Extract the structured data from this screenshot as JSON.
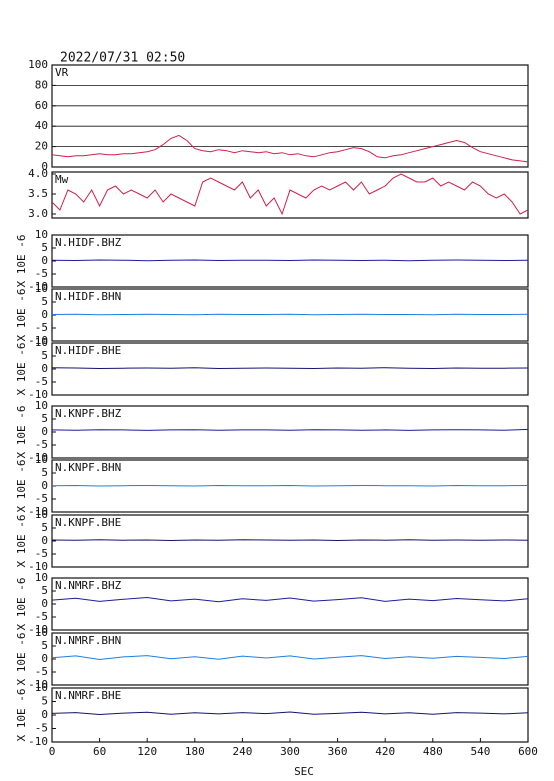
{
  "chart_data": [
    {
      "type": "line",
      "title": "2022/07/31 02:50",
      "label": "VR",
      "color": "#d0204a",
      "grid": true,
      "xlim": [
        0,
        600
      ],
      "ylim": [
        0,
        100
      ],
      "yticks": [
        0,
        20,
        40,
        60,
        80,
        100
      ],
      "x": [
        0,
        10,
        20,
        30,
        40,
        50,
        60,
        70,
        80,
        90,
        100,
        110,
        120,
        130,
        140,
        150,
        160,
        170,
        180,
        190,
        200,
        210,
        220,
        230,
        240,
        250,
        260,
        270,
        280,
        290,
        300,
        310,
        320,
        330,
        340,
        350,
        360,
        370,
        380,
        390,
        400,
        410,
        420,
        430,
        440,
        450,
        460,
        470,
        480,
        490,
        500,
        510,
        520,
        530,
        540,
        550,
        560,
        570,
        580,
        590,
        600
      ],
      "values": [
        12,
        11,
        10,
        11,
        11,
        12,
        13,
        12,
        12,
        13,
        13,
        14,
        15,
        17,
        22,
        28,
        31,
        26,
        18,
        16,
        15,
        17,
        16,
        14,
        16,
        15,
        14,
        15,
        13,
        14,
        12,
        13,
        11,
        10,
        12,
        14,
        15,
        17,
        19,
        18,
        15,
        10,
        9,
        11,
        12,
        14,
        16,
        18,
        20,
        22,
        24,
        26,
        24,
        19,
        15,
        13,
        11,
        9,
        7,
        6,
        5
      ]
    },
    {
      "type": "line",
      "label": "Mw",
      "color": "#d0204a",
      "xlim": [
        0,
        600
      ],
      "ylim": [
        2.9,
        4.05
      ],
      "yticks": [
        {
          "value": 3,
          "label": "3.0"
        },
        3.5,
        {
          "value": 4,
          "label": "4.0"
        }
      ],
      "x": [
        0,
        10,
        20,
        30,
        40,
        50,
        60,
        70,
        80,
        90,
        100,
        110,
        120,
        130,
        140,
        150,
        160,
        170,
        180,
        190,
        200,
        210,
        220,
        230,
        240,
        250,
        260,
        270,
        280,
        290,
        300,
        310,
        320,
        330,
        340,
        350,
        360,
        370,
        380,
        390,
        400,
        410,
        420,
        430,
        440,
        450,
        460,
        470,
        480,
        490,
        500,
        510,
        520,
        530,
        540,
        550,
        560,
        570,
        580,
        590,
        600
      ],
      "values": [
        3.3,
        3.1,
        3.6,
        3.5,
        3.3,
        3.6,
        3.2,
        3.6,
        3.7,
        3.5,
        3.6,
        3.5,
        3.4,
        3.6,
        3.3,
        3.5,
        3.4,
        3.3,
        3.2,
        3.8,
        3.9,
        3.8,
        3.7,
        3.6,
        3.8,
        3.4,
        3.6,
        3.2,
        3.4,
        3.0,
        3.6,
        3.5,
        3.4,
        3.6,
        3.7,
        3.6,
        3.7,
        3.8,
        3.6,
        3.8,
        3.5,
        3.6,
        3.7,
        3.9,
        4.0,
        3.9,
        3.8,
        3.8,
        3.9,
        3.7,
        3.8,
        3.7,
        3.6,
        3.8,
        3.7,
        3.5,
        3.4,
        3.5,
        3.3,
        3.0,
        3.1
      ]
    },
    {
      "type": "line",
      "label": "N.HIDF.BHZ",
      "ylabel": "X 10E -6",
      "color": "#1c1c9c",
      "xlim": [
        0,
        600
      ],
      "ylim": [
        -10,
        10
      ],
      "yticks": [
        -10,
        -5,
        0,
        5,
        10
      ],
      "x": [
        0,
        30,
        60,
        90,
        120,
        150,
        180,
        210,
        240,
        270,
        300,
        330,
        360,
        390,
        420,
        450,
        480,
        510,
        540,
        570,
        600
      ],
      "values": [
        0.3,
        0.2,
        0.4,
        0.3,
        0.1,
        0.3,
        0.4,
        0.2,
        0.3,
        0.3,
        0.2,
        0.4,
        0.3,
        0.2,
        0.3,
        0.1,
        0.3,
        0.4,
        0.3,
        0.2,
        0.3
      ]
    },
    {
      "type": "line",
      "label": "N.HIDF.BHN",
      "ylabel": "X 10E -6",
      "color": "#1e7fe0",
      "xlim": [
        0,
        600
      ],
      "ylim": [
        -10,
        10
      ],
      "yticks": [
        -10,
        -5,
        0,
        5,
        10
      ],
      "x": [
        0,
        30,
        60,
        90,
        120,
        150,
        180,
        210,
        240,
        270,
        300,
        330,
        360,
        390,
        420,
        450,
        480,
        510,
        540,
        570,
        600
      ],
      "values": [
        0.2,
        0.3,
        0.1,
        0.2,
        0.3,
        0.2,
        0.1,
        0.3,
        0.2,
        0.2,
        0.3,
        0.1,
        0.2,
        0.3,
        0.2,
        0.2,
        0.1,
        0.3,
        0.2,
        0.2,
        0.3
      ]
    },
    {
      "type": "line",
      "label": "N.HIDF.BHE",
      "ylabel": "X 10E -6",
      "color": "#141470",
      "xlim": [
        0,
        600
      ],
      "ylim": [
        -10,
        10
      ],
      "yticks": [
        -10,
        -5,
        0,
        5,
        10
      ],
      "x": [
        0,
        30,
        60,
        90,
        120,
        150,
        180,
        210,
        240,
        270,
        300,
        330,
        360,
        390,
        420,
        450,
        480,
        510,
        540,
        570,
        600
      ],
      "values": [
        0.5,
        0.4,
        0.2,
        0.3,
        0.4,
        0.3,
        0.5,
        0.2,
        0.3,
        0.4,
        0.3,
        0.2,
        0.4,
        0.3,
        0.5,
        0.3,
        0.2,
        0.4,
        0.3,
        0.3,
        0.4
      ]
    },
    {
      "type": "line",
      "label": "N.KNPF.BHZ",
      "ylabel": "X 10E -6",
      "color": "#1c1c9c",
      "xlim": [
        0,
        600
      ],
      "ylim": [
        -10,
        10
      ],
      "yticks": [
        -10,
        -5,
        0,
        5,
        10
      ],
      "x": [
        0,
        30,
        60,
        90,
        120,
        150,
        180,
        210,
        240,
        270,
        300,
        330,
        360,
        390,
        420,
        450,
        480,
        510,
        540,
        570,
        600
      ],
      "values": [
        0.8,
        0.7,
        0.9,
        0.8,
        0.6,
        0.8,
        0.9,
        0.7,
        0.8,
        0.8,
        0.7,
        0.9,
        0.8,
        0.7,
        0.8,
        0.6,
        0.8,
        0.9,
        0.8,
        0.7,
        1.0
      ]
    },
    {
      "type": "line",
      "label": "N.KNPF.BHN",
      "ylabel": "X 10E -6",
      "color": "#1e7fe0",
      "xlim": [
        0,
        600
      ],
      "ylim": [
        -10,
        10
      ],
      "yticks": [
        -10,
        -5,
        0,
        5,
        10
      ],
      "x": [
        0,
        30,
        60,
        90,
        120,
        150,
        180,
        210,
        240,
        270,
        300,
        330,
        360,
        390,
        420,
        450,
        480,
        510,
        540,
        570,
        600
      ],
      "values": [
        0.1,
        0.2,
        0.0,
        0.1,
        0.2,
        0.1,
        0.0,
        0.2,
        0.1,
        0.1,
        0.2,
        0.0,
        0.1,
        0.2,
        0.1,
        0.1,
        0.0,
        0.2,
        0.1,
        0.1,
        0.2
      ]
    },
    {
      "type": "line",
      "label": "N.KNPF.BHE",
      "ylabel": "X 10E -6",
      "color": "#141470",
      "xlim": [
        0,
        600
      ],
      "ylim": [
        -10,
        10
      ],
      "yticks": [
        -10,
        -5,
        0,
        5,
        10
      ],
      "x": [
        0,
        30,
        60,
        90,
        120,
        150,
        180,
        210,
        240,
        270,
        300,
        330,
        360,
        390,
        420,
        450,
        480,
        510,
        540,
        570,
        600
      ],
      "values": [
        0.4,
        0.3,
        0.5,
        0.3,
        0.4,
        0.2,
        0.4,
        0.3,
        0.5,
        0.4,
        0.3,
        0.4,
        0.2,
        0.4,
        0.3,
        0.5,
        0.3,
        0.4,
        0.3,
        0.4,
        0.3
      ]
    },
    {
      "type": "line",
      "label": "N.NMRF.BHZ",
      "ylabel": "X 10E -6",
      "color": "#1c1c9c",
      "xlim": [
        0,
        600
      ],
      "ylim": [
        -10,
        10
      ],
      "yticks": [
        -10,
        -5,
        0,
        5,
        10
      ],
      "x": [
        0,
        30,
        60,
        90,
        120,
        150,
        180,
        210,
        240,
        270,
        300,
        330,
        360,
        390,
        420,
        450,
        480,
        510,
        540,
        570,
        600
      ],
      "values": [
        1.5,
        2.2,
        1.0,
        1.8,
        2.5,
        1.2,
        1.9,
        0.9,
        2.0,
        1.4,
        2.3,
        1.1,
        1.7,
        2.4,
        1.0,
        1.9,
        1.3,
        2.1,
        1.6,
        1.2,
        2.0
      ]
    },
    {
      "type": "line",
      "label": "N.NMRF.BHN",
      "ylabel": "X 10E -6",
      "color": "#1e7fe0",
      "xlim": [
        0,
        600
      ],
      "ylim": [
        -10,
        10
      ],
      "yticks": [
        -10,
        -5,
        0,
        5,
        10
      ],
      "x": [
        0,
        30,
        60,
        90,
        120,
        150,
        180,
        210,
        240,
        270,
        300,
        330,
        360,
        390,
        420,
        450,
        480,
        510,
        540,
        570,
        600
      ],
      "values": [
        0.5,
        1.2,
        -0.2,
        0.8,
        1.3,
        0.1,
        0.9,
        -0.1,
        1.1,
        0.4,
        1.2,
        0.0,
        0.7,
        1.3,
        0.2,
        0.9,
        0.3,
        1.0,
        0.6,
        0.2,
        1.0
      ]
    },
    {
      "type": "line",
      "label": "N.NMRF.BHE",
      "ylabel": "X 10E -6",
      "xlabel": "SEC",
      "color": "#141470",
      "xlim": [
        0,
        600
      ],
      "ylim": [
        -10,
        10
      ],
      "yticks": [
        -10,
        -5,
        0,
        5,
        10
      ],
      "xticks": [
        0,
        60,
        120,
        180,
        240,
        300,
        360,
        420,
        480,
        540,
        600
      ],
      "x": [
        0,
        30,
        60,
        90,
        120,
        150,
        180,
        210,
        240,
        270,
        300,
        330,
        360,
        390,
        420,
        450,
        480,
        510,
        540,
        570,
        600
      ],
      "values": [
        0.6,
        0.9,
        0.2,
        0.7,
        1.0,
        0.3,
        0.8,
        0.4,
        0.9,
        0.5,
        1.1,
        0.3,
        0.6,
        1.0,
        0.4,
        0.8,
        0.3,
        0.9,
        0.7,
        0.4,
        0.8
      ]
    }
  ]
}
